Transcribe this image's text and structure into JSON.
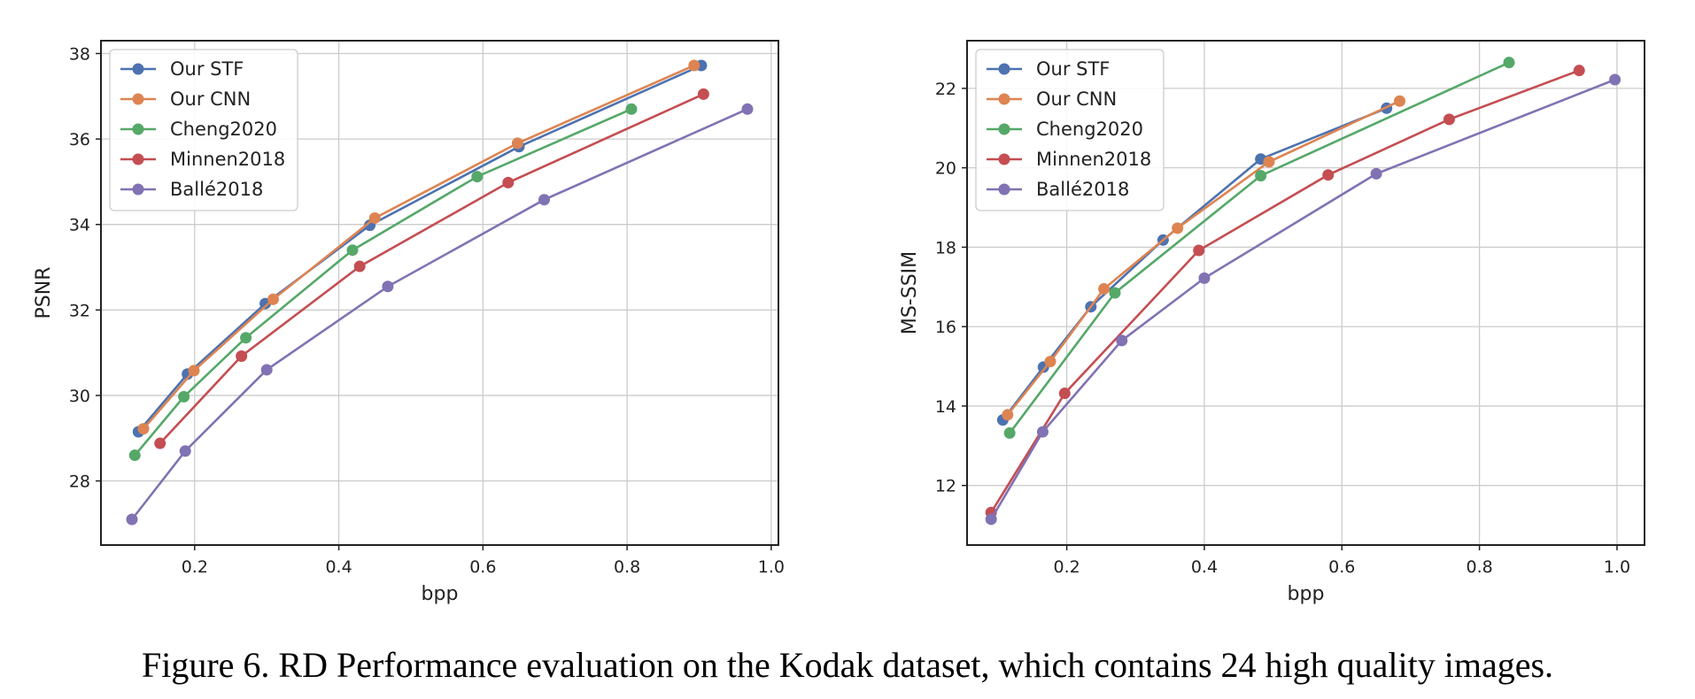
{
  "caption": "Figure 6. RD Performance evaluation on the Kodak dataset, which contains 24 high quality images.",
  "chart_data": [
    {
      "type": "line",
      "xlabel": "bpp",
      "ylabel": "PSNR",
      "xlim": [
        0.07,
        1.01
      ],
      "ylim": [
        26.5,
        38.3
      ],
      "xticks": [
        0.2,
        0.4,
        0.6,
        0.8,
        1.0
      ],
      "xtick_labels": [
        "0.2",
        "0.4",
        "0.6",
        "0.8",
        "1.0"
      ],
      "yticks": [
        28,
        30,
        32,
        34,
        36,
        38
      ],
      "ytick_labels": [
        "28",
        "30",
        "32",
        "34",
        "36",
        "38"
      ],
      "grid": true,
      "legend_position": "top-left",
      "series": [
        {
          "name": "Our STF",
          "color": "#4c72b0",
          "x": [
            0.122,
            0.19,
            0.298,
            0.443,
            0.65,
            0.903
          ],
          "y": [
            29.15,
            30.5,
            32.15,
            33.98,
            35.82,
            37.72
          ]
        },
        {
          "name": "Our CNN",
          "color": "#dd8452",
          "x": [
            0.129,
            0.199,
            0.309,
            0.45,
            0.648,
            0.893
          ],
          "y": [
            29.22,
            30.58,
            32.25,
            34.15,
            35.9,
            37.72
          ]
        },
        {
          "name": "Cheng2020",
          "color": "#55a868",
          "x": [
            0.117,
            0.185,
            0.271,
            0.419,
            0.592,
            0.806
          ],
          "y": [
            28.6,
            29.97,
            31.35,
            33.4,
            35.12,
            36.7
          ]
        },
        {
          "name": "Minnen2018",
          "color": "#c44e52",
          "x": [
            0.152,
            0.265,
            0.429,
            0.635,
            0.906
          ],
          "y": [
            28.88,
            30.92,
            33.02,
            34.98,
            37.05
          ]
        },
        {
          "name": "Ballé2018",
          "color": "#8172b3",
          "x": [
            0.113,
            0.187,
            0.3,
            0.468,
            0.685,
            0.967
          ],
          "y": [
            27.1,
            28.7,
            30.6,
            32.55,
            34.58,
            36.7
          ]
        }
      ]
    },
    {
      "type": "line",
      "xlabel": "bpp",
      "ylabel": "MS-SSIM",
      "xlim": [
        0.055,
        1.04
      ],
      "ylim": [
        10.5,
        23.2
      ],
      "xticks": [
        0.2,
        0.4,
        0.6,
        0.8,
        1.0
      ],
      "xtick_labels": [
        "0.2",
        "0.4",
        "0.6",
        "0.8",
        "1.0"
      ],
      "yticks": [
        12,
        14,
        16,
        18,
        20,
        22
      ],
      "ytick_labels": [
        "12",
        "14",
        "16",
        "18",
        "20",
        "22"
      ],
      "grid": true,
      "legend_position": "top-left",
      "series": [
        {
          "name": "Our STF",
          "color": "#4c72b0",
          "x": [
            0.107,
            0.166,
            0.235,
            0.34,
            0.482,
            0.665
          ],
          "y": [
            13.65,
            14.98,
            16.5,
            18.18,
            20.22,
            21.5
          ]
        },
        {
          "name": "Our CNN",
          "color": "#dd8452",
          "x": [
            0.114,
            0.176,
            0.254,
            0.361,
            0.494,
            0.684
          ],
          "y": [
            13.78,
            15.12,
            16.95,
            18.48,
            20.15,
            21.68
          ]
        },
        {
          "name": "Cheng2020",
          "color": "#55a868",
          "x": [
            0.117,
            0.27,
            0.482,
            0.843
          ],
          "y": [
            13.32,
            16.85,
            19.8,
            22.65
          ]
        },
        {
          "name": "Minnen2018",
          "color": "#c44e52",
          "x": [
            0.09,
            0.197,
            0.392,
            0.58,
            0.756,
            0.945
          ],
          "y": [
            11.32,
            14.32,
            17.92,
            19.82,
            21.22,
            22.45
          ]
        },
        {
          "name": "Ballé2018",
          "color": "#8172b3",
          "x": [
            0.09,
            0.165,
            0.28,
            0.4,
            0.65,
            0.997
          ],
          "y": [
            11.15,
            13.35,
            15.65,
            17.22,
            19.85,
            22.22
          ]
        }
      ]
    }
  ]
}
